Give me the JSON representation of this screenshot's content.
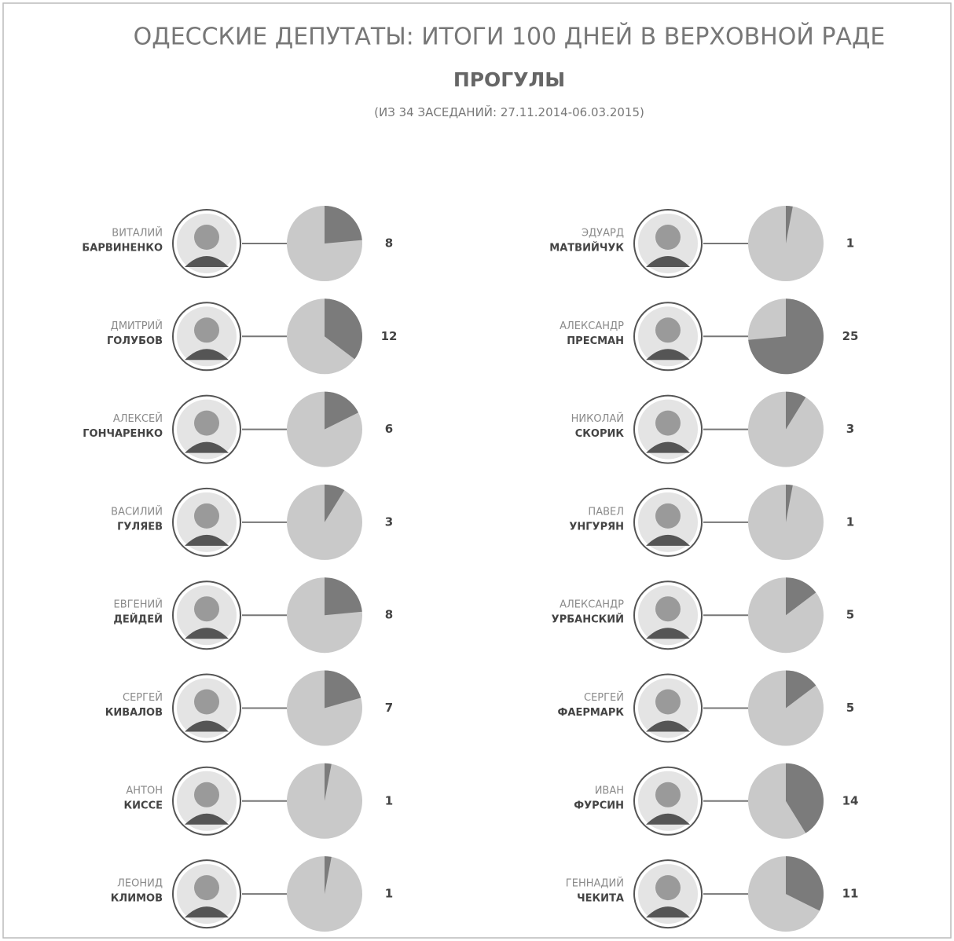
{
  "chart_data": {
    "type": "pie",
    "title": "ОДЕССКИЕ ДЕПУТАТЫ: ИТОГИ 100 ДНЕЙ В ВЕРХОВНОЙ РАДЕ",
    "heading": "ПРОГУЛЫ",
    "subtitle_prefix": "(ИЗ",
    "total": 34,
    "subtitle_suffix": "ЗАСЕДАНИЙ: 27.11.2014-06.03.2015)",
    "colors": {
      "absent": "#7b7b7b",
      "rest": "#c9c9c9"
    },
    "items": [
      {
        "first": "ВИТАЛИЙ",
        "last": "БАРВИНЕНКО",
        "value": 8
      },
      {
        "first": "ДМИТРИЙ",
        "last": "ГОЛУБОВ",
        "value": 12
      },
      {
        "first": "АЛЕКСЕЙ",
        "last": "ГОНЧАРЕНКО",
        "value": 6
      },
      {
        "first": "ВАСИЛИЙ",
        "last": "ГУЛЯЕВ",
        "value": 3
      },
      {
        "first": "ЕВГЕНИЙ",
        "last": "ДЕЙДЕЙ",
        "value": 8
      },
      {
        "first": "СЕРГЕЙ",
        "last": "КИВАЛОВ",
        "value": 7
      },
      {
        "first": "АНТОН",
        "last": "КИССЕ",
        "value": 1
      },
      {
        "first": "ЛЕОНИД",
        "last": "КЛИМОВ",
        "value": 1
      },
      {
        "first": "ЭДУАРД",
        "last": "МАТВИЙЧУК",
        "value": 1
      },
      {
        "first": "АЛЕКСАНДР",
        "last": "ПРЕСМАН",
        "value": 25
      },
      {
        "first": "НИКОЛАЙ",
        "last": "СКОРИК",
        "value": 3
      },
      {
        "first": "ПАВЕЛ",
        "last": "УНГУРЯН",
        "value": 1
      },
      {
        "first": "АЛЕКСАНДР",
        "last": "УРБАНСКИЙ",
        "value": 5
      },
      {
        "first": "СЕРГЕЙ",
        "last": "ФАЕРМАРК",
        "value": 5
      },
      {
        "first": "ИВАН",
        "last": "ФУРСИН",
        "value": 14
      },
      {
        "first": "ГЕННАДИЙ",
        "last": "ЧЕКИТА",
        "value": 11
      }
    ]
  }
}
